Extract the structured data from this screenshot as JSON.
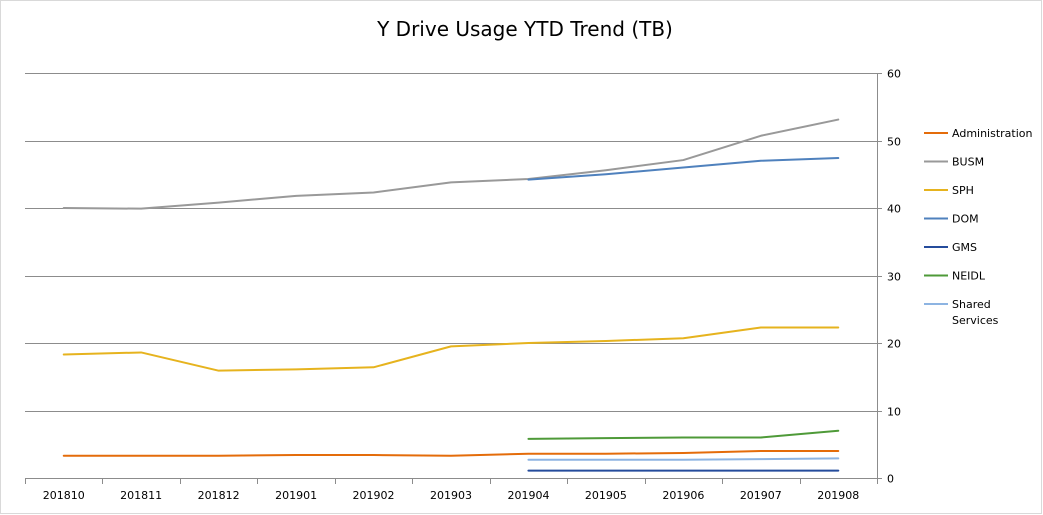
{
  "chart_data": {
    "type": "line",
    "title": "Y Drive Usage YTD Trend (TB)",
    "xlabel": "",
    "ylabel": "",
    "categories": [
      "201810",
      "201811",
      "201812",
      "201901",
      "201902",
      "201903",
      "201904",
      "201905",
      "201906",
      "201907",
      "201908"
    ],
    "ylim": [
      0,
      60
    ],
    "yticks": [
      0,
      10,
      20,
      30,
      40,
      50,
      60
    ],
    "y_axis_side": "right",
    "grid": true,
    "legend_position": "right",
    "series": [
      {
        "name": "Administration",
        "color": "#E46C0A",
        "values": [
          3.3,
          3.3,
          3.3,
          3.4,
          3.4,
          3.3,
          3.6,
          3.6,
          3.7,
          4.0,
          4.0
        ]
      },
      {
        "name": "BUSM",
        "color": "#999999",
        "values": [
          40.0,
          39.9,
          40.8,
          41.8,
          42.3,
          43.8,
          44.3,
          45.6,
          47.1,
          50.7,
          53.1
        ]
      },
      {
        "name": "SPH",
        "color": "#E6B31E",
        "values": [
          18.3,
          18.6,
          15.9,
          16.1,
          16.4,
          19.5,
          20.0,
          20.3,
          20.7,
          22.3,
          22.3
        ]
      },
      {
        "name": "DOM",
        "color": "#4F81BD",
        "values": [
          null,
          null,
          null,
          null,
          null,
          null,
          44.2,
          45.0,
          46.0,
          47.0,
          47.4
        ]
      },
      {
        "name": "GMS",
        "color": "#254C9C",
        "values": [
          null,
          null,
          null,
          null,
          null,
          null,
          1.1,
          1.1,
          1.1,
          1.1,
          1.1
        ]
      },
      {
        "name": "NEIDL",
        "color": "#4E9A38",
        "values": [
          null,
          null,
          null,
          null,
          null,
          null,
          5.8,
          5.9,
          6.0,
          6.0,
          7.0
        ]
      },
      {
        "name": "Shared Services",
        "color": "#8DB4E2",
        "values": [
          null,
          null,
          null,
          null,
          null,
          null,
          2.7,
          2.7,
          2.7,
          2.8,
          2.9
        ]
      }
    ]
  }
}
